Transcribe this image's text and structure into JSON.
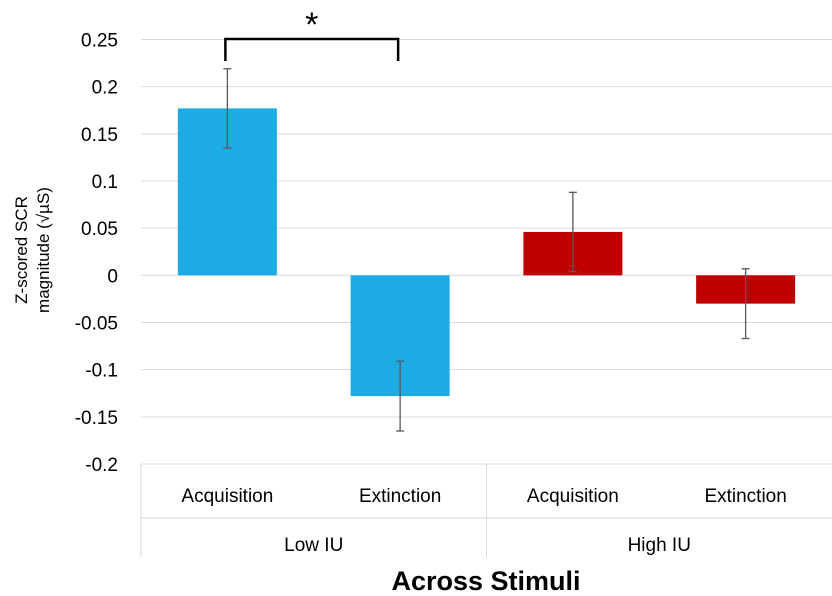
{
  "chart_data": {
    "type": "bar",
    "title": "",
    "xlabel": "Across Stimuli",
    "ylabel_lines": [
      "Z-scored SCR",
      "magnitude (√µS)"
    ],
    "ylim": [
      -0.2,
      0.25
    ],
    "ytick_values": [
      0.25,
      0.2,
      0.15,
      0.1,
      0.05,
      0,
      -0.05,
      -0.1,
      -0.15,
      -0.2
    ],
    "ytick_labels": [
      "0.25",
      "0.2",
      "0.15",
      "0.1",
      "0.05",
      "0",
      "-0.05",
      "-0.1",
      "-0.15",
      "-0.2"
    ],
    "grid": true,
    "legend": "none",
    "groups": [
      {
        "label": "Low IU",
        "color": "#1CABE2"
      },
      {
        "label": "High IU",
        "color": "#C00000"
      }
    ],
    "categories": [
      "Acquisition",
      "Extinction",
      "Acquisition",
      "Extinction"
    ],
    "group_index": [
      0,
      0,
      1,
      1
    ],
    "values": [
      0.177,
      -0.128,
      0.046,
      -0.03
    ],
    "error": [
      0.042,
      0.037,
      0.042,
      0.037
    ],
    "significance": {
      "label": "*",
      "between": [
        0,
        1
      ]
    }
  }
}
